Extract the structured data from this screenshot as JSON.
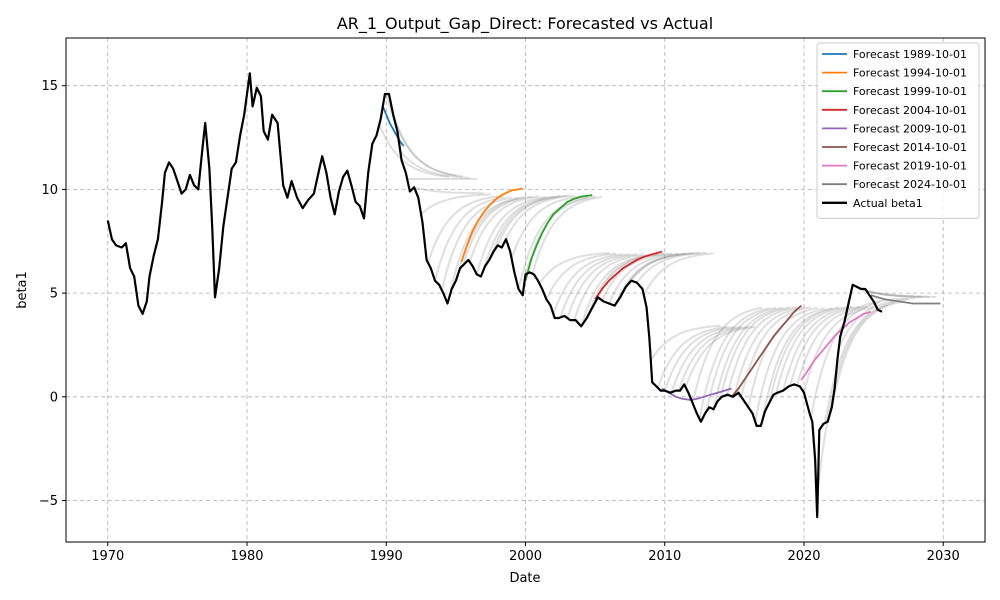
{
  "chart_data": {
    "type": "line",
    "title": "AR_1_Output_Gap_Direct: Forecasted vs Actual",
    "xlabel": "Date",
    "ylabel": "beta1",
    "xlim": [
      1967.0,
      2033.0
    ],
    "ylim": [
      -7.0,
      17.3
    ],
    "xticks": [
      1970,
      1980,
      1990,
      2000,
      2010,
      2020,
      2030
    ],
    "yticks": [
      -5,
      0,
      5,
      10,
      15
    ],
    "grid": true,
    "legend_position": "top-right",
    "series": [
      {
        "name": "Actual beta1",
        "color": "#000000",
        "points": [
          [
            1970.0,
            8.5
          ],
          [
            1970.3,
            7.6
          ],
          [
            1970.6,
            7.3
          ],
          [
            1971.0,
            7.2
          ],
          [
            1971.3,
            7.4
          ],
          [
            1971.6,
            6.2
          ],
          [
            1971.9,
            5.8
          ],
          [
            1972.2,
            4.4
          ],
          [
            1972.5,
            4.0
          ],
          [
            1972.8,
            4.6
          ],
          [
            1973.0,
            5.8
          ],
          [
            1973.3,
            6.8
          ],
          [
            1973.6,
            7.6
          ],
          [
            1973.9,
            9.4
          ],
          [
            1974.1,
            10.8
          ],
          [
            1974.4,
            11.3
          ],
          [
            1974.7,
            11.0
          ],
          [
            1975.0,
            10.4
          ],
          [
            1975.3,
            9.8
          ],
          [
            1975.6,
            10.0
          ],
          [
            1975.9,
            10.7
          ],
          [
            1976.2,
            10.2
          ],
          [
            1976.5,
            10.0
          ],
          [
            1976.8,
            12.0
          ],
          [
            1977.0,
            13.2
          ],
          [
            1977.3,
            11.0
          ],
          [
            1977.5,
            8.2
          ],
          [
            1977.7,
            4.8
          ],
          [
            1978.0,
            6.2
          ],
          [
            1978.3,
            8.2
          ],
          [
            1978.6,
            9.6
          ],
          [
            1978.9,
            11.0
          ],
          [
            1979.2,
            11.3
          ],
          [
            1979.5,
            12.6
          ],
          [
            1979.8,
            13.6
          ],
          [
            1980.0,
            14.6
          ],
          [
            1980.2,
            15.6
          ],
          [
            1980.4,
            14.0
          ],
          [
            1980.7,
            14.9
          ],
          [
            1981.0,
            14.5
          ],
          [
            1981.2,
            12.8
          ],
          [
            1981.5,
            12.4
          ],
          [
            1981.8,
            13.6
          ],
          [
            1982.2,
            13.2
          ],
          [
            1982.6,
            10.2
          ],
          [
            1982.9,
            9.6
          ],
          [
            1983.2,
            10.4
          ],
          [
            1983.6,
            9.6
          ],
          [
            1984.0,
            9.1
          ],
          [
            1984.4,
            9.5
          ],
          [
            1984.8,
            9.8
          ],
          [
            1985.1,
            10.7
          ],
          [
            1985.4,
            11.6
          ],
          [
            1985.7,
            10.8
          ],
          [
            1986.0,
            9.6
          ],
          [
            1986.3,
            8.8
          ],
          [
            1986.6,
            9.9
          ],
          [
            1986.9,
            10.6
          ],
          [
            1987.2,
            10.9
          ],
          [
            1987.5,
            10.2
          ],
          [
            1987.8,
            9.4
          ],
          [
            1988.1,
            9.2
          ],
          [
            1988.4,
            8.6
          ],
          [
            1988.7,
            10.8
          ],
          [
            1989.0,
            12.2
          ],
          [
            1989.3,
            12.6
          ],
          [
            1989.6,
            13.4
          ],
          [
            1989.9,
            14.6
          ],
          [
            1990.2,
            14.6
          ],
          [
            1990.5,
            13.6
          ],
          [
            1990.8,
            12.8
          ],
          [
            1991.1,
            11.4
          ],
          [
            1991.4,
            10.8
          ],
          [
            1991.7,
            9.9
          ],
          [
            1992.0,
            10.1
          ],
          [
            1992.3,
            9.6
          ],
          [
            1992.6,
            8.4
          ],
          [
            1992.9,
            6.6
          ],
          [
            1993.2,
            6.2
          ],
          [
            1993.5,
            5.6
          ],
          [
            1993.8,
            5.4
          ],
          [
            1994.1,
            5.0
          ],
          [
            1994.4,
            4.5
          ],
          [
            1994.7,
            5.2
          ],
          [
            1995.0,
            5.6
          ],
          [
            1995.3,
            6.2
          ],
          [
            1995.6,
            6.4
          ],
          [
            1995.9,
            6.6
          ],
          [
            1996.2,
            6.3
          ],
          [
            1996.5,
            5.9
          ],
          [
            1996.8,
            5.8
          ],
          [
            1997.1,
            6.3
          ],
          [
            1997.4,
            6.6
          ],
          [
            1997.7,
            7.0
          ],
          [
            1998.0,
            7.3
          ],
          [
            1998.3,
            7.2
          ],
          [
            1998.6,
            7.6
          ],
          [
            1998.9,
            7.0
          ],
          [
            1999.2,
            6.0
          ],
          [
            1999.5,
            5.2
          ],
          [
            1999.8,
            4.9
          ],
          [
            2000.0,
            5.9
          ],
          [
            2000.3,
            6.0
          ],
          [
            2000.6,
            5.9
          ],
          [
            2000.9,
            5.6
          ],
          [
            2001.2,
            5.2
          ],
          [
            2001.5,
            4.7
          ],
          [
            2001.8,
            4.4
          ],
          [
            2002.1,
            3.8
          ],
          [
            2002.4,
            3.8
          ],
          [
            2002.8,
            3.9
          ],
          [
            2003.2,
            3.7
          ],
          [
            2003.6,
            3.7
          ],
          [
            2004.0,
            3.4
          ],
          [
            2004.4,
            3.8
          ],
          [
            2004.8,
            4.3
          ],
          [
            2005.2,
            4.8
          ],
          [
            2005.6,
            4.6
          ],
          [
            2006.0,
            4.5
          ],
          [
            2006.4,
            4.4
          ],
          [
            2006.8,
            4.8
          ],
          [
            2007.2,
            5.3
          ],
          [
            2007.6,
            5.6
          ],
          [
            2008.0,
            5.5
          ],
          [
            2008.4,
            5.2
          ],
          [
            2008.7,
            4.3
          ],
          [
            2008.9,
            2.8
          ],
          [
            2009.1,
            0.7
          ],
          [
            2009.4,
            0.5
          ],
          [
            2009.7,
            0.3
          ],
          [
            2010.0,
            0.3
          ],
          [
            2010.4,
            0.2
          ],
          [
            2010.8,
            0.3
          ],
          [
            2011.1,
            0.3
          ],
          [
            2011.4,
            0.6
          ],
          [
            2011.7,
            0.2
          ],
          [
            2012.0,
            -0.3
          ],
          [
            2012.3,
            -0.8
          ],
          [
            2012.6,
            -1.2
          ],
          [
            2012.9,
            -0.8
          ],
          [
            2013.2,
            -0.5
          ],
          [
            2013.5,
            -0.6
          ],
          [
            2013.8,
            -0.2
          ],
          [
            2014.1,
            0.0
          ],
          [
            2014.5,
            0.1
          ],
          [
            2014.9,
            0.0
          ],
          [
            2015.3,
            0.2
          ],
          [
            2015.7,
            -0.2
          ],
          [
            2016.0,
            -0.5
          ],
          [
            2016.3,
            -0.8
          ],
          [
            2016.6,
            -1.4
          ],
          [
            2016.9,
            -1.4
          ],
          [
            2017.2,
            -0.7
          ],
          [
            2017.5,
            -0.3
          ],
          [
            2017.8,
            0.1
          ],
          [
            2018.1,
            0.2
          ],
          [
            2018.5,
            0.3
          ],
          [
            2018.9,
            0.5
          ],
          [
            2019.3,
            0.6
          ],
          [
            2019.7,
            0.5
          ],
          [
            2020.0,
            0.2
          ],
          [
            2020.2,
            -0.3
          ],
          [
            2020.4,
            -0.8
          ],
          [
            2020.6,
            -1.2
          ],
          [
            2020.8,
            -3.0
          ],
          [
            2020.95,
            -5.8
          ],
          [
            2021.1,
            -1.6
          ],
          [
            2021.4,
            -1.3
          ],
          [
            2021.7,
            -1.2
          ],
          [
            2022.0,
            -0.5
          ],
          [
            2022.2,
            0.4
          ],
          [
            2022.4,
            1.8
          ],
          [
            2022.6,
            2.9
          ],
          [
            2022.9,
            3.6
          ],
          [
            2023.2,
            4.5
          ],
          [
            2023.5,
            5.4
          ],
          [
            2023.8,
            5.3
          ],
          [
            2024.1,
            5.2
          ],
          [
            2024.4,
            5.2
          ],
          [
            2024.7,
            4.9
          ],
          [
            2025.0,
            4.6
          ],
          [
            2025.3,
            4.2
          ],
          [
            2025.6,
            4.1
          ]
        ]
      },
      {
        "name": "Forecast 1989-10-01",
        "color": "#1f77b4",
        "points": [
          [
            1989.75,
            14.0
          ],
          [
            1990.0,
            13.6
          ],
          [
            1990.25,
            13.2
          ],
          [
            1990.5,
            12.9
          ],
          [
            1990.75,
            12.6
          ],
          [
            1991.0,
            12.3
          ],
          [
            1991.25,
            12.1
          ]
        ]
      },
      {
        "name": "Forecast 1994-10-01",
        "color": "#ff7f0e",
        "points": [
          [
            1995.4,
            6.5
          ],
          [
            1995.8,
            7.3
          ],
          [
            1996.2,
            8.0
          ],
          [
            1996.6,
            8.5
          ],
          [
            1997.0,
            8.9
          ],
          [
            1997.5,
            9.3
          ],
          [
            1998.0,
            9.6
          ],
          [
            1998.5,
            9.8
          ],
          [
            1999.0,
            9.95
          ],
          [
            1999.5,
            10.0
          ],
          [
            1999.8,
            10.05
          ]
        ]
      },
      {
        "name": "Forecast 1999-10-01",
        "color": "#2ca02c",
        "points": [
          [
            2000.0,
            5.6
          ],
          [
            2000.4,
            6.6
          ],
          [
            2000.8,
            7.3
          ],
          [
            2001.2,
            7.9
          ],
          [
            2001.6,
            8.4
          ],
          [
            2002.0,
            8.8
          ],
          [
            2002.5,
            9.1
          ],
          [
            2003.0,
            9.4
          ],
          [
            2003.5,
            9.55
          ],
          [
            2004.0,
            9.65
          ],
          [
            2004.5,
            9.7
          ],
          [
            2004.8,
            9.72
          ]
        ]
      },
      {
        "name": "Forecast 2004-10-01",
        "color": "#d62728",
        "points": [
          [
            2005.0,
            4.7
          ],
          [
            2005.5,
            5.2
          ],
          [
            2006.0,
            5.6
          ],
          [
            2006.5,
            5.9
          ],
          [
            2007.0,
            6.2
          ],
          [
            2007.5,
            6.4
          ],
          [
            2008.0,
            6.6
          ],
          [
            2008.5,
            6.75
          ],
          [
            2009.0,
            6.85
          ],
          [
            2009.5,
            6.95
          ],
          [
            2009.8,
            7.0
          ]
        ]
      },
      {
        "name": "Forecast 2009-10-01",
        "color": "#9467bd",
        "points": [
          [
            2009.8,
            0.4
          ],
          [
            2010.3,
            0.2
          ],
          [
            2010.8,
            0.0
          ],
          [
            2011.3,
            -0.1
          ],
          [
            2011.8,
            -0.15
          ],
          [
            2012.3,
            -0.1
          ],
          [
            2012.8,
            0.0
          ],
          [
            2013.3,
            0.1
          ],
          [
            2013.8,
            0.2
          ],
          [
            2014.3,
            0.3
          ],
          [
            2014.8,
            0.4
          ]
        ]
      },
      {
        "name": "Forecast 2014-10-01",
        "color": "#8c564b",
        "points": [
          [
            2014.8,
            0.0
          ],
          [
            2015.3,
            0.4
          ],
          [
            2015.8,
            0.9
          ],
          [
            2016.3,
            1.4
          ],
          [
            2016.8,
            1.9
          ],
          [
            2017.3,
            2.4
          ],
          [
            2017.8,
            2.9
          ],
          [
            2018.3,
            3.3
          ],
          [
            2018.8,
            3.7
          ],
          [
            2019.3,
            4.1
          ],
          [
            2019.8,
            4.4
          ]
        ]
      },
      {
        "name": "Forecast 2019-10-01",
        "color": "#e377c2",
        "points": [
          [
            2019.8,
            0.8
          ],
          [
            2020.3,
            1.3
          ],
          [
            2020.8,
            1.8
          ],
          [
            2021.3,
            2.2
          ],
          [
            2021.8,
            2.6
          ],
          [
            2022.3,
            3.0
          ],
          [
            2022.8,
            3.3
          ],
          [
            2023.3,
            3.6
          ],
          [
            2023.8,
            3.8
          ],
          [
            2024.3,
            4.0
          ],
          [
            2024.8,
            4.1
          ]
        ]
      },
      {
        "name": "Forecast 2024-10-01",
        "color": "#7f7f7f",
        "points": [
          [
            2024.8,
            4.9
          ],
          [
            2025.3,
            4.8
          ],
          [
            2025.8,
            4.7
          ],
          [
            2026.3,
            4.65
          ],
          [
            2026.8,
            4.6
          ],
          [
            2027.3,
            4.55
          ],
          [
            2027.8,
            4.5
          ],
          [
            2028.3,
            4.5
          ],
          [
            2028.8,
            4.5
          ],
          [
            2029.3,
            4.5
          ],
          [
            2029.8,
            4.5
          ]
        ]
      }
    ]
  }
}
